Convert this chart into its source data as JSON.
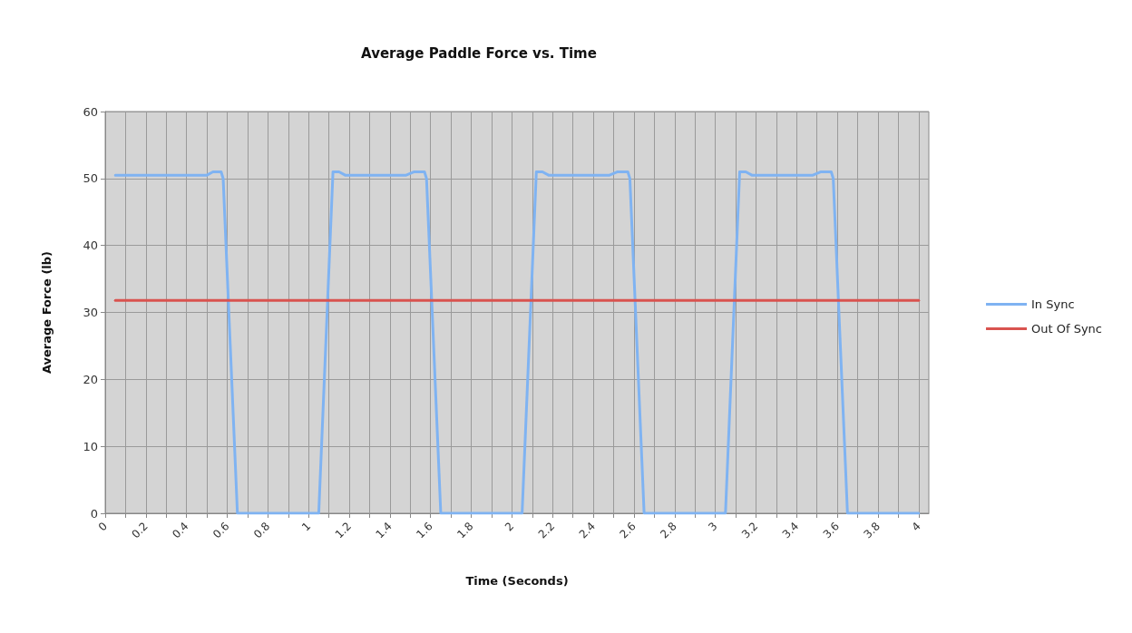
{
  "chart_data": {
    "type": "line",
    "title": "Average Paddle Force vs. Time",
    "xlabel": "Time (Seconds)",
    "ylabel": "Average Force (lb)",
    "xlim": [
      0,
      4.05
    ],
    "xticks": [
      0,
      {
        "value": 0.1,
        "label": null
      },
      0.2,
      {
        "value": 0.3,
        "label": null
      },
      0.4,
      {
        "value": 0.5,
        "label": null
      },
      0.6,
      {
        "value": 0.7,
        "label": null
      },
      0.8,
      {
        "value": 0.9,
        "label": null
      },
      1,
      {
        "value": 1.1,
        "label": null
      },
      1.2,
      {
        "value": 1.3,
        "label": null
      },
      1.4,
      {
        "value": 1.5,
        "label": null
      },
      1.6,
      {
        "value": 1.7,
        "label": null
      },
      1.8,
      {
        "value": 1.9,
        "label": null
      },
      2,
      {
        "value": 2.1,
        "label": null
      },
      2.2,
      {
        "value": 2.3,
        "label": null
      },
      2.4,
      {
        "value": 2.5,
        "label": null
      },
      2.6,
      {
        "value": 2.7,
        "label": null
      },
      2.8,
      {
        "value": 2.9,
        "label": null
      },
      3,
      {
        "value": 3.1,
        "label": null
      },
      3.2,
      {
        "value": 3.3,
        "label": null
      },
      3.4,
      {
        "value": 3.5,
        "label": null
      },
      3.6,
      {
        "value": 3.7,
        "label": null
      },
      3.8,
      {
        "value": 3.9,
        "label": null
      },
      4
    ],
    "ylim": [
      0,
      60
    ],
    "yticks": [
      0,
      10,
      20,
      30,
      40,
      50,
      60
    ],
    "grid": true,
    "legend": "right",
    "marker": "none",
    "line_style": "solid",
    "series": [
      {
        "name": "In Sync",
        "color": "#7fb3f2",
        "x": [
          0.05,
          0.5,
          0.53,
          0.57,
          0.58,
          0.65,
          1.05,
          1.12,
          1.15,
          1.18,
          1.48,
          1.52,
          1.57,
          1.58,
          1.65,
          2.05,
          2.12,
          2.15,
          2.18,
          2.48,
          2.52,
          2.57,
          2.58,
          2.65,
          3.05,
          3.12,
          3.15,
          3.18,
          3.48,
          3.52,
          3.57,
          3.58,
          3.65,
          4.0
        ],
        "values": [
          50.5,
          50.5,
          51,
          51,
          50,
          0,
          0,
          51,
          51,
          50.5,
          50.5,
          51,
          51,
          50,
          0,
          0,
          51,
          51,
          50.5,
          50.5,
          51,
          51,
          50,
          0,
          0,
          51,
          51,
          50.5,
          50.5,
          51,
          51,
          50,
          0,
          0
        ]
      },
      {
        "name": "Out Of Sync",
        "color": "#d9534f",
        "x": [
          0.05,
          1,
          2,
          3,
          4.0
        ],
        "values": [
          31.8,
          31.8,
          31.8,
          31.8,
          31.8
        ]
      }
    ]
  }
}
